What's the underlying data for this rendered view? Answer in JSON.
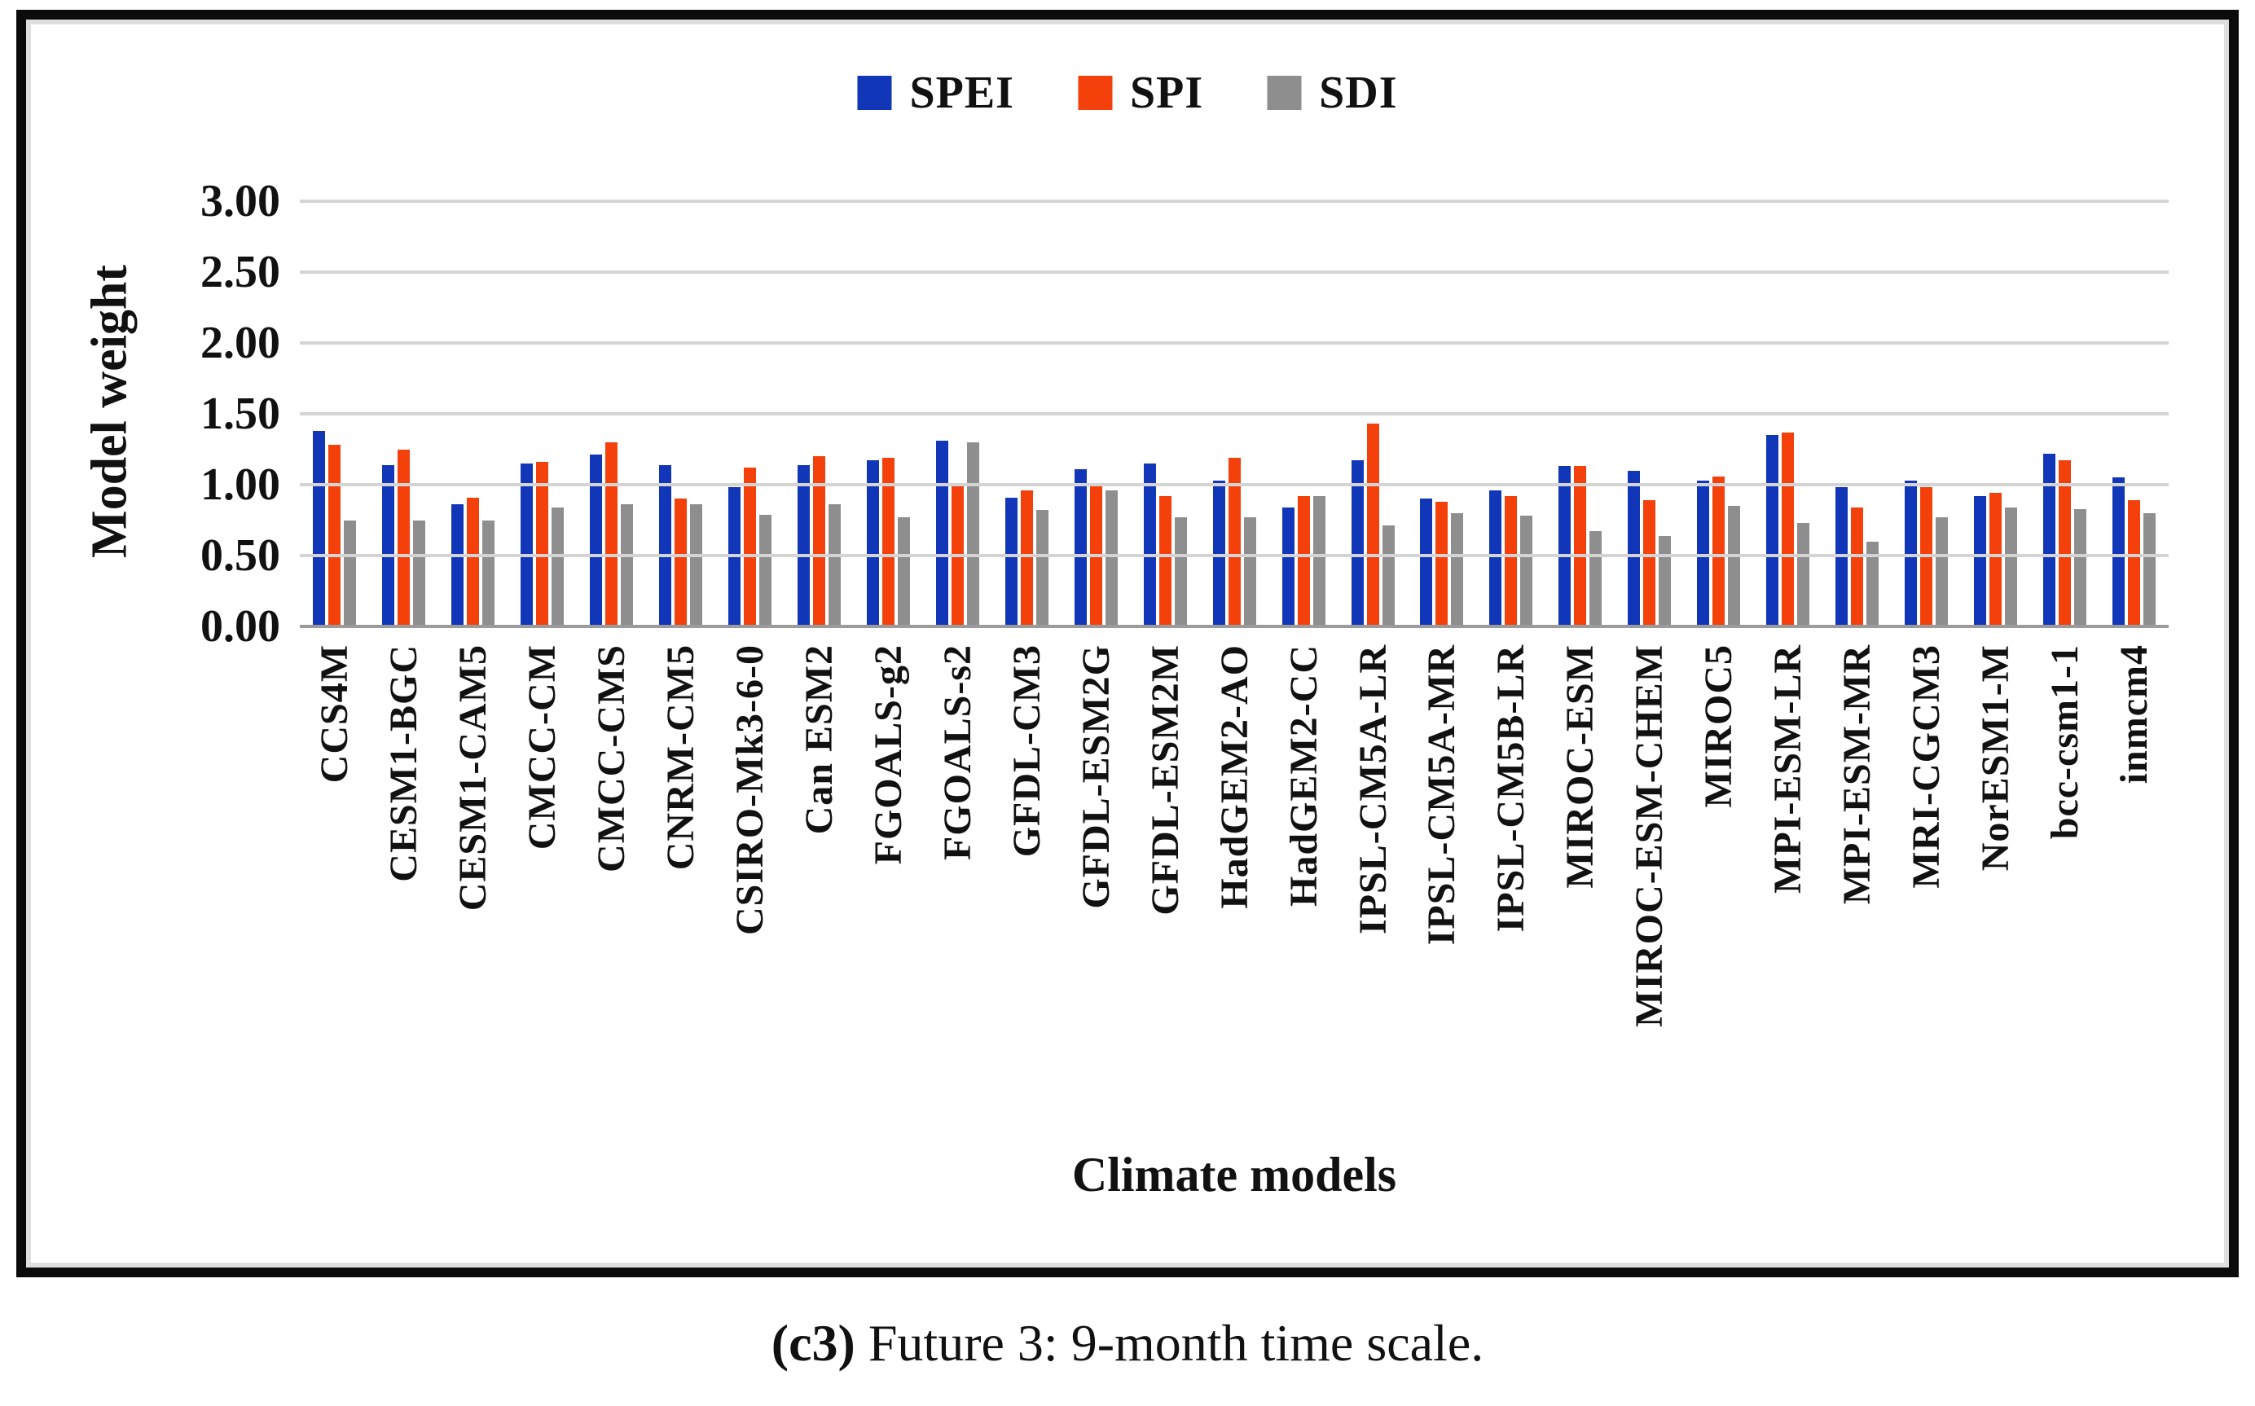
{
  "figure": {
    "caption_prefix": "(c3)",
    "caption_text": " Future 3: 9-month time scale."
  },
  "chart_data": {
    "type": "bar",
    "title": "",
    "xlabel": "Climate models",
    "ylabel": "Model weight",
    "ylim": [
      0,
      3.0
    ],
    "ytick_step": 0.5,
    "ytick_labels": [
      "3.00",
      "2.50",
      "2.00",
      "1.50",
      "1.00",
      "0.50",
      "0.00"
    ],
    "grid": true,
    "legend_position": "top-center",
    "categories": [
      "CCS4M",
      "CESM1-BGC",
      "CESM1-CAM5",
      "CMCC-CM",
      "CMCC-CMS",
      "CNRM-CM5",
      "CSIRO-Mk3-6-0",
      "Can ESM2",
      "FGOALS-g2",
      "FGOALS-s2",
      "GFDL-CM3",
      "GFDL-ESM2G",
      "GFDL-ESM2M",
      "HadGEM2-AO",
      "HadGEM2-CC",
      "IPSL-CM5A-LR",
      "IPSL-CM5A-MR",
      "IPSL-CM5B-LR",
      "MIROC-ESM",
      "MIROC-ESM-CHEM",
      "MIROC5",
      "MPI-ESM-LR",
      "MPI-ESM-MR",
      "MRI-CGCM3",
      "NorESM1-M",
      "bcc-csm1-1",
      "inmcm4"
    ],
    "series": [
      {
        "name": "SPEI",
        "color": "#1137b8",
        "values": [
          1.38,
          1.14,
          0.86,
          1.15,
          1.21,
          1.14,
          0.98,
          1.14,
          1.17,
          1.31,
          0.91,
          1.11,
          1.15,
          1.03,
          0.84,
          1.17,
          0.9,
          0.96,
          1.13,
          1.1,
          1.03,
          1.35,
          0.98,
          1.03,
          0.92,
          1.22,
          1.05
        ]
      },
      {
        "name": "SPI",
        "color": "#f4410c",
        "values": [
          1.28,
          1.25,
          0.91,
          1.16,
          1.3,
          0.9,
          1.12,
          1.2,
          1.19,
          0.99,
          0.96,
          0.99,
          0.92,
          1.19,
          0.92,
          1.43,
          0.88,
          0.92,
          1.13,
          0.89,
          1.06,
          1.37,
          0.84,
          0.98,
          0.94,
          1.17,
          0.89
        ]
      },
      {
        "name": "SDI",
        "color": "#8e8e8e",
        "values": [
          0.75,
          0.75,
          0.75,
          0.84,
          0.86,
          0.86,
          0.79,
          0.86,
          0.77,
          1.3,
          0.82,
          0.96,
          0.77,
          0.77,
          0.92,
          0.71,
          0.8,
          0.78,
          0.67,
          0.64,
          0.85,
          0.73,
          0.6,
          0.77,
          0.84,
          0.83,
          0.8
        ]
      }
    ]
  },
  "colors": {
    "gridline": "#d4d4d4",
    "axis_line": "#9b9b9b",
    "frame": "#0b0b0b",
    "text": "#111111"
  }
}
